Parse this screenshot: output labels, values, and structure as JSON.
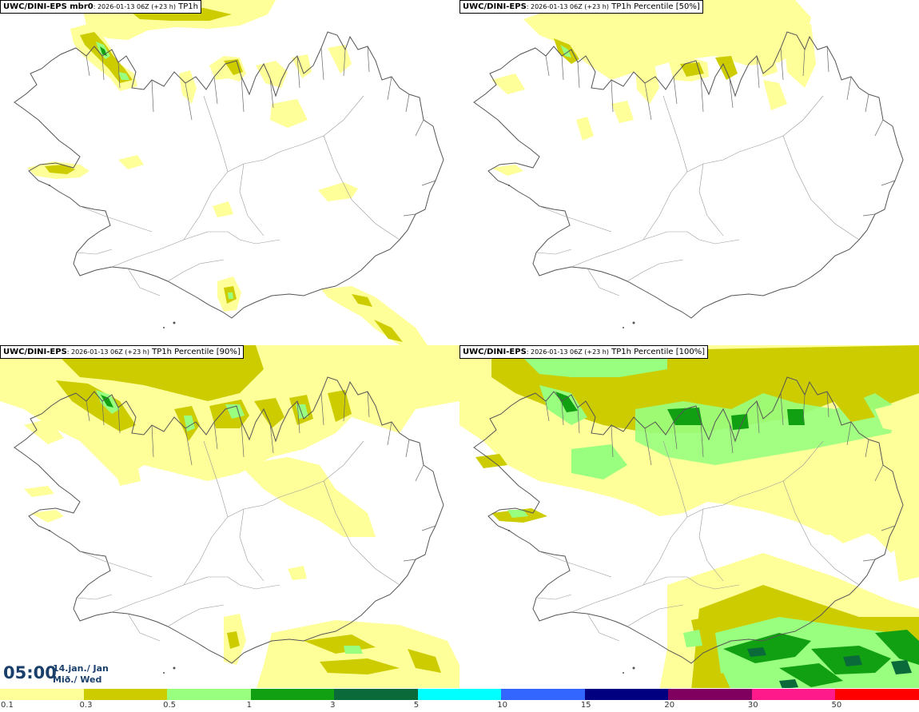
{
  "panels": [
    {
      "model": "UWC/DINI-EPS mbr0",
      "run": ": 2026-01-13 06Z (+23 h)",
      "param": " TP1h"
    },
    {
      "model": "UWC/DINI-EPS",
      "run": ": 2026-01-13 06Z (+23 h)",
      "param": " TP1h Percentile [50%]"
    },
    {
      "model": "UWC/DINI-EPS",
      "run": ": 2026-01-13 06Z (+23 h)",
      "param": " TP1h Percentile [90%]"
    },
    {
      "model": "UWC/DINI-EPS",
      "run": ": 2026-01-13 06Z (+23 h)",
      "param": " TP1h Percentile [100%]"
    }
  ],
  "valid_time": {
    "time": "05:00",
    "date_line": "14.jan./ Jan",
    "day_line": "Mið./ Wed"
  },
  "legend": {
    "labels": [
      "0.1",
      "0.3",
      "0.5",
      "1",
      "3",
      "5",
      "10",
      "15",
      "20",
      "30",
      "50"
    ],
    "colors": [
      "#ffff9a",
      "#cccc00",
      "#99ff7f",
      "#11a011",
      "#0a6a3a",
      "#00ffff",
      "#3366ff",
      "#000080",
      "#800060",
      "#ff1a8c",
      "#ff0000"
    ]
  },
  "palette": {
    "light_yellow": "#ffff9a",
    "olive": "#cccc00",
    "light_green": "#99ff7f",
    "green": "#11a011",
    "coast": "#555555"
  }
}
